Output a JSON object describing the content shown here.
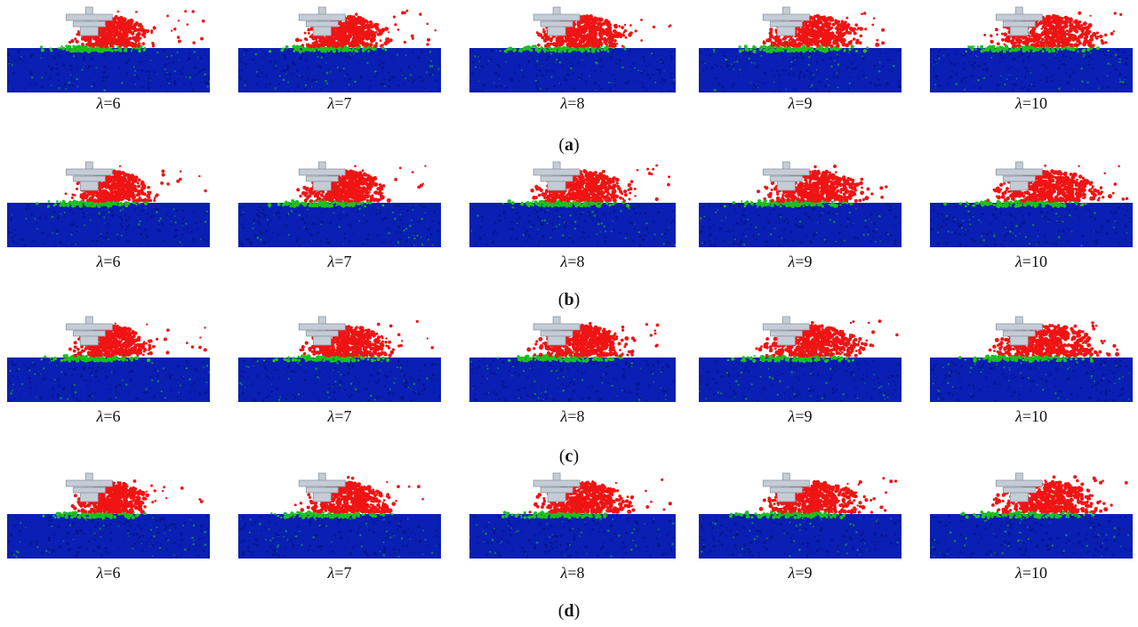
{
  "colors": {
    "soil": "#0a1fb4",
    "soil_dark": "#06127a",
    "disturbed": "#1fbf1f",
    "thrown": "#f01414",
    "blade": "#c4ccd6",
    "blade_edge": "#8e98a4",
    "background": "#ffffff"
  },
  "icons": [
    "rotary-blade-icon"
  ],
  "lambda_symbol": "λ",
  "rows": [
    {
      "caption_open": "(",
      "caption_letter": "a",
      "caption_close": ")",
      "panels": [
        {
          "lambda_value": "=6"
        },
        {
          "lambda_value": "=7"
        },
        {
          "lambda_value": "=8"
        },
        {
          "lambda_value": "=9"
        },
        {
          "lambda_value": "=10"
        }
      ]
    },
    {
      "caption_open": "(",
      "caption_letter": "b",
      "caption_close": ")",
      "panels": [
        {
          "lambda_value": "=6"
        },
        {
          "lambda_value": "=7"
        },
        {
          "lambda_value": "=8"
        },
        {
          "lambda_value": "=9"
        },
        {
          "lambda_value": "=10"
        }
      ]
    },
    {
      "caption_open": "(",
      "caption_letter": "c",
      "caption_close": ")",
      "panels": [
        {
          "lambda_value": "=6"
        },
        {
          "lambda_value": "=7"
        },
        {
          "lambda_value": "=8"
        },
        {
          "lambda_value": "=9"
        },
        {
          "lambda_value": "=10"
        }
      ]
    },
    {
      "caption_open": "(",
      "caption_letter": "d",
      "caption_close": ")",
      "panels": [
        {
          "lambda_value": "=6"
        },
        {
          "lambda_value": "=7"
        },
        {
          "lambda_value": "=8"
        },
        {
          "lambda_value": "=9"
        },
        {
          "lambda_value": "=10"
        }
      ]
    }
  ]
}
